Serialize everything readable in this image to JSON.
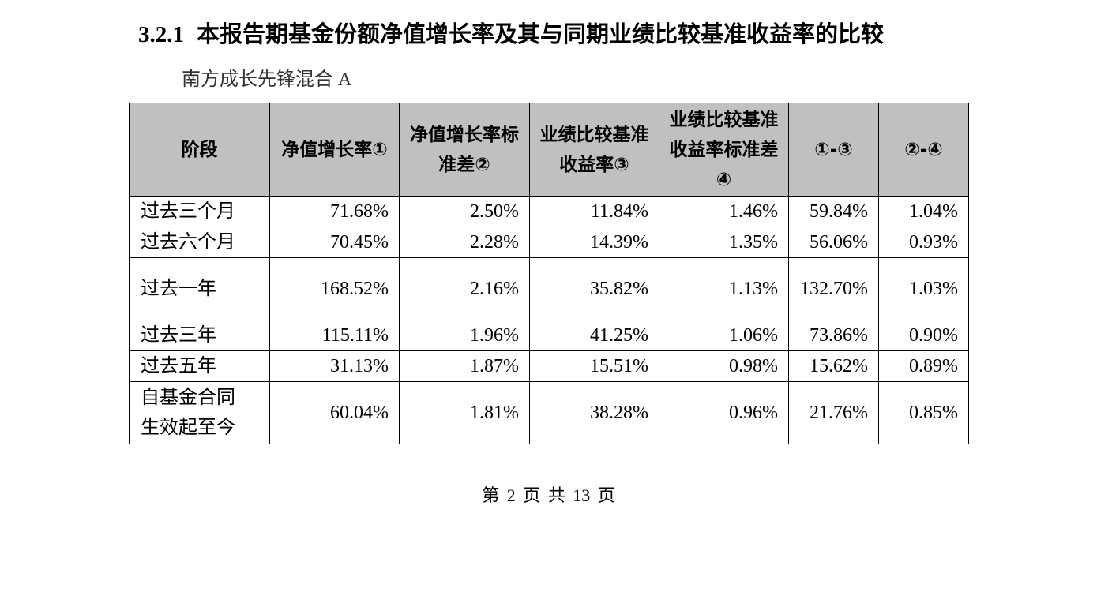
{
  "header": {
    "number": "3.2.1",
    "title": "本报告期基金份额净值增长率及其与同期业绩比较基准收益率的比较"
  },
  "subtitle": "南方成长先锋混合 A",
  "table": {
    "columns": [
      "阶段",
      "净值增长率①",
      "净值增长率标准差②",
      "业绩比较基准收益率③",
      "业绩比较基准收益率标准差④",
      "①-③",
      "②-④"
    ],
    "rows": [
      [
        "过去三个月",
        "71.68%",
        "2.50%",
        "11.84%",
        "1.46%",
        "59.84%",
        "1.04%"
      ],
      [
        "过去六个月",
        "70.45%",
        "2.28%",
        "14.39%",
        "1.35%",
        "56.06%",
        "0.93%"
      ],
      [
        "过去一年",
        "168.52%",
        "2.16%",
        "35.82%",
        "1.13%",
        "132.70%",
        "1.03%"
      ],
      [
        "过去三年",
        "115.11%",
        "1.96%",
        "41.25%",
        "1.06%",
        "73.86%",
        "0.90%"
      ],
      [
        "过去五年",
        "31.13%",
        "1.87%",
        "15.51%",
        "0.98%",
        "15.62%",
        "0.89%"
      ],
      [
        "自基金合同生效起至今",
        "60.04%",
        "1.81%",
        "38.28%",
        "0.96%",
        "21.76%",
        "0.85%"
      ]
    ]
  },
  "footer": "第 2 页 共 13 页"
}
